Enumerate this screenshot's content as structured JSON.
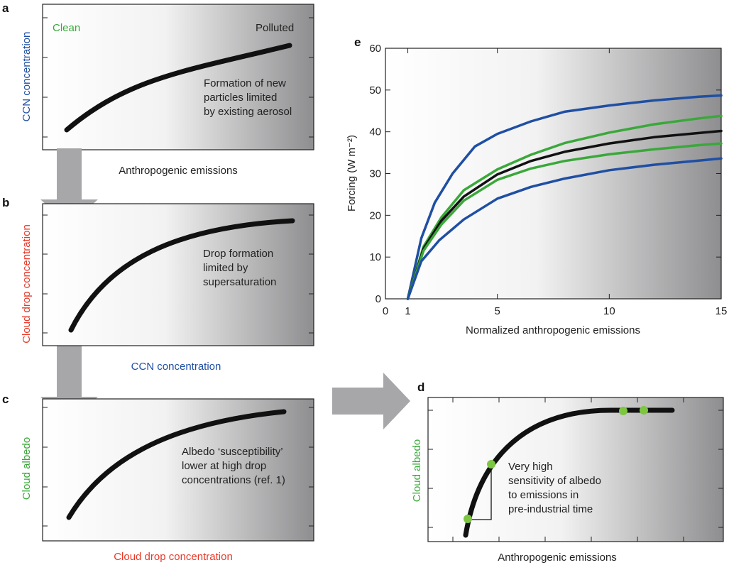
{
  "colors": {
    "blue": "#1f4fa3",
    "red": "#e8392a",
    "green": "#3aa83a",
    "black": "#111111",
    "arrow": "#a7a7a9",
    "dot": "#7dc642",
    "panel_gradient_start": "#ffffff",
    "panel_gradient_end": "#8e8e90"
  },
  "panels": {
    "a": {
      "letter": "a",
      "ylabel": "CCN concentration",
      "xlabel": "Anthropogenic emissions",
      "clean": "Clean",
      "polluted": "Polluted",
      "note": [
        "Formation of new",
        "particles limited",
        "by existing aerosol"
      ]
    },
    "b": {
      "letter": "b",
      "ylabel": "Cloud drop concentration",
      "xlabel": "CCN concentration",
      "note": [
        "Drop formation",
        "limited by",
        "supersaturation"
      ]
    },
    "c": {
      "letter": "c",
      "ylabel": "Cloud albedo",
      "xlabel": "Cloud drop concentration",
      "note": [
        "Albedo ‘susceptibility’",
        "lower at high drop",
        "concentrations (ref. 1)"
      ]
    },
    "d": {
      "letter": "d",
      "ylabel": "Cloud albedo",
      "xlabel": "Anthropogenic emissions",
      "note": [
        "Very high",
        "sensitivity of albedo",
        "to emissions in",
        "pre-industrial time"
      ]
    }
  },
  "chart_data": {
    "letter": "e",
    "type": "line",
    "title": "",
    "xlabel": "Normalized anthropogenic emissions",
    "ylabel": "Forcing (W m⁻²)",
    "xlim": [
      0,
      15
    ],
    "ylim": [
      0,
      60
    ],
    "xticks": [
      0,
      1,
      5,
      10,
      15
    ],
    "yticks": [
      0,
      10,
      20,
      30,
      40,
      50,
      60
    ],
    "grid": false,
    "series": [
      {
        "color": "blue",
        "x": [
          1,
          1.6,
          2.2,
          3,
          4,
          5,
          6.5,
          8,
          10,
          12,
          14,
          15
        ],
        "y": [
          0,
          14.5,
          23,
          30,
          36.5,
          39.5,
          42.5,
          44.8,
          46.3,
          47.5,
          48.4,
          48.7
        ]
      },
      {
        "color": "green",
        "x": [
          1,
          1.7,
          2.5,
          3.5,
          5,
          6.5,
          8,
          10,
          12,
          14,
          15
        ],
        "y": [
          0,
          12.5,
          19.5,
          26,
          31,
          34.5,
          37.3,
          39.8,
          41.8,
          43.2,
          43.8
        ]
      },
      {
        "color": "black",
        "x": [
          1,
          1.7,
          2.5,
          3.5,
          5,
          6.5,
          8,
          10,
          12,
          14,
          15
        ],
        "y": [
          0,
          12,
          18.7,
          24.5,
          29.8,
          33,
          35.2,
          37.2,
          38.7,
          39.7,
          40.2
        ]
      },
      {
        "color": "green",
        "x": [
          1,
          1.7,
          2.5,
          3.5,
          5,
          6.5,
          8,
          10,
          12,
          14,
          15
        ],
        "y": [
          0,
          11.5,
          17.8,
          23.5,
          28.5,
          31.2,
          33,
          34.6,
          35.8,
          36.8,
          37.2
        ]
      },
      {
        "color": "blue",
        "x": [
          1,
          1.6,
          2.4,
          3.5,
          5,
          6.5,
          8,
          10,
          12,
          14,
          15
        ],
        "y": [
          0,
          9,
          14,
          19,
          24,
          26.8,
          28.8,
          30.8,
          32.1,
          33.1,
          33.6
        ]
      }
    ]
  }
}
